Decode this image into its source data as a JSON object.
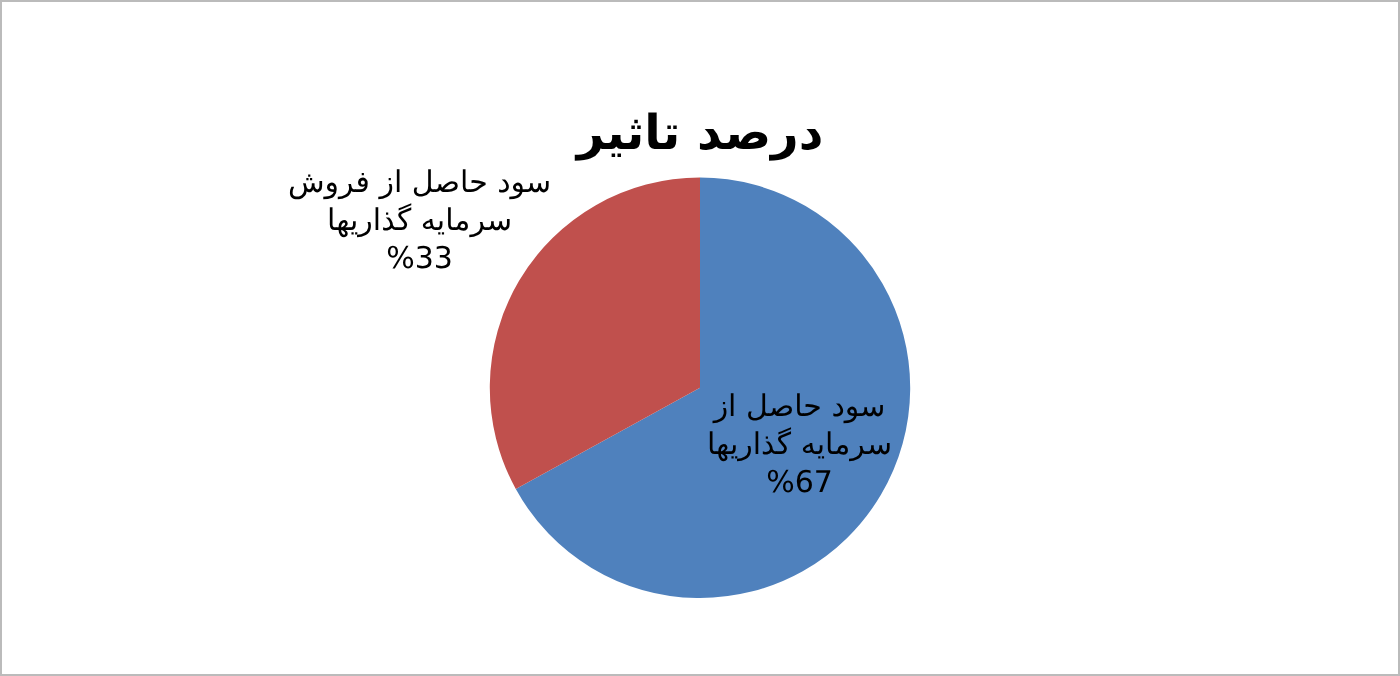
{
  "chart_data": {
    "type": "pie",
    "title": "درصد تاثیر",
    "categories": [
      "سود حاصل از سرمایه گذاریها",
      "سود حاصل از فروش سرمایه گذاریها"
    ],
    "values": [
      67,
      33
    ],
    "colors": [
      "#4f81bd",
      "#c0504d"
    ],
    "value_labels": [
      "%67",
      "%33"
    ],
    "legend": false
  }
}
